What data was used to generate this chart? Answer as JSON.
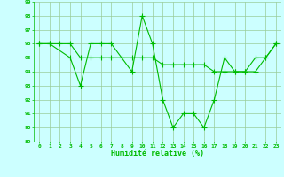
{
  "line1_x": [
    0,
    1,
    3,
    4,
    5,
    6,
    7,
    9,
    10,
    11,
    12,
    13,
    14,
    15,
    16,
    17,
    18,
    19,
    20,
    21,
    22,
    23
  ],
  "line1_y": [
    96,
    96,
    95,
    93,
    96,
    96,
    96,
    94,
    98,
    96,
    92,
    90,
    91,
    91,
    90,
    92,
    95,
    94,
    94,
    94,
    95,
    96
  ],
  "line2_x": [
    0,
    1,
    2,
    3,
    4,
    5,
    6,
    7,
    8,
    9,
    10,
    11,
    12,
    13,
    14,
    15,
    16,
    17,
    18,
    19,
    20,
    21,
    22,
    23
  ],
  "line2_y": [
    96,
    96,
    96,
    96,
    95,
    95,
    95,
    95,
    95,
    95,
    95,
    95,
    94.5,
    94.5,
    94.5,
    94.5,
    94.5,
    94,
    94,
    94,
    94,
    95,
    95,
    96
  ],
  "xlabel": "Humidité relative (%)",
  "ylim": [
    89,
    99
  ],
  "xlim": [
    -0.5,
    23.5
  ],
  "yticks": [
    89,
    90,
    91,
    92,
    93,
    94,
    95,
    96,
    97,
    98,
    99
  ],
  "xticks": [
    0,
    1,
    2,
    3,
    4,
    5,
    6,
    7,
    8,
    9,
    10,
    11,
    12,
    13,
    14,
    15,
    16,
    17,
    18,
    19,
    20,
    21,
    22,
    23
  ],
  "line_color": "#00bb00",
  "bg_color": "#ccffff",
  "grid_color": "#99cc99",
  "markersize": 2.0,
  "linewidth": 0.8
}
